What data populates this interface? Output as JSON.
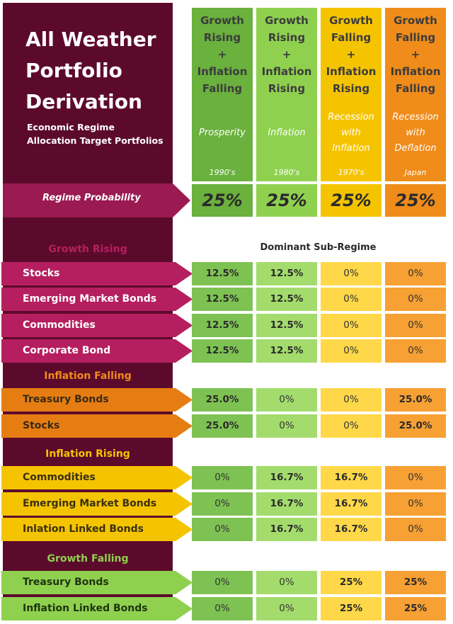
{
  "title": [
    "All Weather",
    "Portfolio",
    "Derivation"
  ],
  "subtitle": [
    "Economic Regime",
    "Allocation Target Portfolios"
  ],
  "columns": [
    {
      "lines": [
        "Growth",
        "Rising",
        "+",
        "Inflation",
        "Falling"
      ],
      "regime": [
        "Prosperity"
      ],
      "era": "1990's",
      "color": "#6ab13d"
    },
    {
      "lines": [
        "Growth",
        "Rising",
        "+",
        "Inflation",
        "Rising"
      ],
      "regime": [
        "Inflation"
      ],
      "era": "1980's",
      "color": "#8fd14f"
    },
    {
      "lines": [
        "Growth",
        "Falling",
        "+",
        "Inflation",
        "Rising"
      ],
      "regime": [
        "Recession",
        "with",
        "Inflation"
      ],
      "era": "1970's",
      "color": "#f5c400"
    },
    {
      "lines": [
        "Growth",
        "Falling",
        "+",
        "Inflation",
        "Falling"
      ],
      "regime": [
        "Recession",
        "with",
        "Deflation"
      ],
      "era": "Japan",
      "color": "#f08c1a"
    }
  ],
  "probability": {
    "label": "Regime Probability",
    "values": [
      "25%",
      "25%",
      "25%",
      "25%"
    ]
  },
  "dominant_label": "Dominant Sub-Regime",
  "cell_colors": [
    "#7ec253",
    "#a3dc6d",
    "#ffd84a",
    "#f7a033"
  ],
  "sections": [
    {
      "label": "Growth Rising",
      "label_color": "#b51f5f",
      "arrow_color": "#b51f5f",
      "text_color": "#ffffff",
      "rows": [
        {
          "asset": "Stocks",
          "values": [
            "12.5%",
            "12.5%",
            "0%",
            "0%"
          ]
        },
        {
          "asset": "Emerging Market Bonds",
          "values": [
            "12.5%",
            "12.5%",
            "0%",
            "0%"
          ]
        },
        {
          "asset": "Commodities",
          "values": [
            "12.5%",
            "12.5%",
            "0%",
            "0%"
          ]
        },
        {
          "asset": "Corporate Bond",
          "values": [
            "12.5%",
            "12.5%",
            "0%",
            "0%"
          ]
        }
      ]
    },
    {
      "label": "Inflation Falling",
      "label_color": "#f08c1a",
      "arrow_color": "#e67d12",
      "text_color": "#3a2a10",
      "rows": [
        {
          "asset": "Treasury Bonds",
          "values": [
            "25.0%",
            "0%",
            "0%",
            "25.0%"
          ]
        },
        {
          "asset": "Stocks",
          "values": [
            "25.0%",
            "0%",
            "0%",
            "25.0%"
          ]
        }
      ]
    },
    {
      "label": "Inflation Rising",
      "label_color": "#f5c400",
      "arrow_color": "#f5c400",
      "text_color": "#3a3010",
      "rows": [
        {
          "asset": "Commodities",
          "values": [
            "0%",
            "16.7%",
            "16.7%",
            "0%"
          ]
        },
        {
          "asset": "Emerging Market Bonds",
          "values": [
            "0%",
            "16.7%",
            "16.7%",
            "0%"
          ]
        },
        {
          "asset": "Inlation Linked Bonds",
          "values": [
            "0%",
            "16.7%",
            "16.7%",
            "0%"
          ]
        }
      ]
    },
    {
      "label": "Growth Falling",
      "label_color": "#8fd14f",
      "arrow_color": "#8fd14f",
      "text_color": "#1f3310",
      "rows": [
        {
          "asset": "Treasury Bonds",
          "values": [
            "0%",
            "0%",
            "25%",
            "25%"
          ]
        },
        {
          "asset": "Inflation Linked Bonds",
          "values": [
            "0%",
            "0%",
            "25%",
            "25%"
          ]
        }
      ]
    }
  ]
}
